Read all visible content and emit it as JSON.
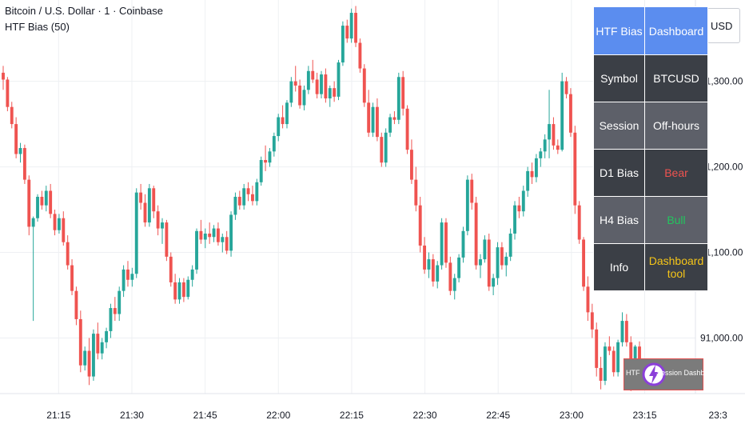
{
  "header": {
    "symbol_title": "Bitcoin / U.S. Dollar · 1 · Coinbase",
    "indicator": "HTF Bias (50)"
  },
  "currency": "USD",
  "colors": {
    "up": "#26a69a",
    "down": "#ef5350",
    "grid": "#eef0f3",
    "bear": "#ef5350",
    "bull": "#22c55e",
    "info": "#f5c518",
    "header_bg": "#5b8def"
  },
  "dashboard": {
    "header": [
      "HTF Bias",
      "Dashboard"
    ],
    "rows": [
      {
        "label": "Symbol",
        "value": "BTCUSD"
      },
      {
        "label": "Session",
        "value": "Off-hours"
      },
      {
        "label": "D1 Bias",
        "value": "Bear"
      },
      {
        "label": "H4 Bias",
        "value": "Bull"
      },
      {
        "label": "Info",
        "value": "Dashboard tool"
      }
    ]
  },
  "session_tag": {
    "left": "HTF",
    "text": "Session Dashboard",
    "icon": "lightning-logo-icon"
  },
  "chart_data": {
    "type": "candlestick",
    "y_ticks": [
      91300,
      91200,
      91100,
      91000
    ],
    "y_tick_labels": [
      "91,300.00",
      "91,200.00",
      "91,100.00",
      "91,000.00"
    ],
    "ylim": [
      90935,
      91395
    ],
    "x_tick_labels": [
      "21:15",
      "21:30",
      "21:45",
      "22:00",
      "22:15",
      "22:30",
      "22:45",
      "23:00",
      "23:15",
      "23:3"
    ],
    "x_range_minutes": [
      "21:03",
      "23:30"
    ],
    "grid": true,
    "candles": [
      [
        91310,
        91318,
        91290,
        91302
      ],
      [
        91302,
        91305,
        91265,
        91270
      ],
      [
        91270,
        91276,
        91245,
        91250
      ],
      [
        91250,
        91258,
        91210,
        91215
      ],
      [
        91215,
        91228,
        91205,
        91222
      ],
      [
        91222,
        91226,
        91180,
        91185
      ],
      [
        91185,
        91190,
        91120,
        91130
      ],
      [
        91130,
        91142,
        91020,
        91140
      ],
      [
        91140,
        91168,
        91136,
        91165
      ],
      [
        91165,
        91172,
        91150,
        91155
      ],
      [
        91155,
        91178,
        91148,
        91172
      ],
      [
        91172,
        91180,
        91140,
        91145
      ],
      [
        91145,
        91150,
        91120,
        91126
      ],
      [
        91126,
        91145,
        91122,
        91140
      ],
      [
        91140,
        91148,
        91108,
        91112
      ],
      [
        91112,
        91120,
        91080,
        91085
      ],
      [
        91085,
        91092,
        91050,
        91055
      ],
      [
        91055,
        91060,
        91015,
        91022
      ],
      [
        91022,
        91032,
        90960,
        90968
      ],
      [
        90968,
        90990,
        90962,
        90985
      ],
      [
        90985,
        91000,
        90945,
        90955
      ],
      [
        90955,
        91010,
        90950,
        91005
      ],
      [
        91005,
        91018,
        90975,
        90982
      ],
      [
        90982,
        91000,
        90975,
        90995
      ],
      [
        90995,
        91012,
        90988,
        91008
      ],
      [
        91008,
        91040,
        91000,
        91035
      ],
      [
        91035,
        91048,
        91020,
        91028
      ],
      [
        91028,
        91060,
        91020,
        91055
      ],
      [
        91055,
        91085,
        91048,
        91080
      ],
      [
        91080,
        91090,
        91060,
        91068
      ],
      [
        91068,
        91082,
        91060,
        91075
      ],
      [
        91075,
        91175,
        91070,
        91170
      ],
      [
        91170,
        91180,
        91150,
        91158
      ],
      [
        91158,
        91168,
        91130,
        91135
      ],
      [
        91135,
        91180,
        91130,
        91175
      ],
      [
        91175,
        91178,
        91140,
        91148
      ],
      [
        91148,
        91155,
        91120,
        91128
      ],
      [
        91128,
        91140,
        91110,
        91135
      ],
      [
        91135,
        91138,
        91090,
        91095
      ],
      [
        91095,
        91100,
        91060,
        91065
      ],
      [
        91065,
        91075,
        91040,
        91045
      ],
      [
        91045,
        91070,
        91040,
        91065
      ],
      [
        91065,
        91070,
        91042,
        91048
      ],
      [
        91048,
        91072,
        91045,
        91068
      ],
      [
        91068,
        91085,
        91060,
        91080
      ],
      [
        91080,
        91128,
        91075,
        91125
      ],
      [
        91125,
        91138,
        91110,
        91115
      ],
      [
        91115,
        91128,
        91105,
        91122
      ],
      [
        91122,
        91135,
        91110,
        91118
      ],
      [
        91118,
        91132,
        91112,
        91128
      ],
      [
        91128,
        91135,
        91108,
        91112
      ],
      [
        91112,
        91122,
        91100,
        91118
      ],
      [
        91118,
        91125,
        91098,
        91102
      ],
      [
        91102,
        91148,
        91095,
        91144
      ],
      [
        91144,
        91170,
        91138,
        91165
      ],
      [
        91165,
        91172,
        91150,
        91155
      ],
      [
        91155,
        91180,
        91150,
        91175
      ],
      [
        91175,
        91182,
        91160,
        91168
      ],
      [
        91168,
        91178,
        91155,
        91160
      ],
      [
        91160,
        91186,
        91155,
        91182
      ],
      [
        91182,
        91212,
        91178,
        91208
      ],
      [
        91208,
        91225,
        91195,
        91205
      ],
      [
        91205,
        91222,
        91200,
        91218
      ],
      [
        91218,
        91240,
        91212,
        91236
      ],
      [
        91236,
        91262,
        91230,
        91258
      ],
      [
        91258,
        91272,
        91245,
        91250
      ],
      [
        91250,
        91278,
        91245,
        91275
      ],
      [
        91275,
        91305,
        91270,
        91300
      ],
      [
        91300,
        91318,
        91288,
        91295
      ],
      [
        91295,
        91302,
        91268,
        91272
      ],
      [
        91272,
        91295,
        91266,
        91290
      ],
      [
        91290,
        91318,
        91285,
        91312
      ],
      [
        91312,
        91325,
        91298,
        91302
      ],
      [
        91302,
        91310,
        91280,
        91285
      ],
      [
        91285,
        91312,
        91280,
        91308
      ],
      [
        91308,
        91315,
        91275,
        91280
      ],
      [
        91280,
        91295,
        91270,
        91292
      ],
      [
        91292,
        91300,
        91276,
        91282
      ],
      [
        91282,
        91325,
        91278,
        91322
      ],
      [
        91322,
        91370,
        91318,
        91365
      ],
      [
        91365,
        91372,
        91345,
        91350
      ],
      [
        91350,
        91385,
        91345,
        91380
      ],
      [
        91380,
        91388,
        91340,
        91345
      ],
      [
        91345,
        91350,
        91310,
        91315
      ],
      [
        91315,
        91320,
        91270,
        91275
      ],
      [
        91275,
        91290,
        91235,
        91240
      ],
      [
        91240,
        91275,
        91235,
        91270
      ],
      [
        91270,
        91280,
        91230,
        91235
      ],
      [
        91235,
        91240,
        91200,
        91205
      ],
      [
        91205,
        91245,
        91200,
        91240
      ],
      [
        91240,
        91262,
        91235,
        91258
      ],
      [
        91258,
        91265,
        91250,
        91255
      ],
      [
        91255,
        91310,
        91250,
        91305
      ],
      [
        91305,
        91312,
        91260,
        91268
      ],
      [
        91268,
        91272,
        91215,
        91220
      ],
      [
        91220,
        91232,
        91180,
        91185
      ],
      [
        91185,
        91200,
        91148,
        91155
      ],
      [
        91155,
        91165,
        91100,
        91108
      ],
      [
        91108,
        91118,
        91075,
        91080
      ],
      [
        91080,
        91100,
        91070,
        91092
      ],
      [
        91092,
        91098,
        91060,
        91066
      ],
      [
        91066,
        91090,
        91058,
        91085
      ],
      [
        91085,
        91140,
        91080,
        91135
      ],
      [
        91135,
        91140,
        91082,
        91088
      ],
      [
        91088,
        91095,
        91050,
        91055
      ],
      [
        91055,
        91075,
        91045,
        91070
      ],
      [
        91070,
        91098,
        91065,
        91094
      ],
      [
        91094,
        91130,
        91088,
        91125
      ],
      [
        91125,
        91190,
        91120,
        91185
      ],
      [
        91185,
        91192,
        91150,
        91158
      ],
      [
        91158,
        91165,
        91080,
        91085
      ],
      [
        91085,
        91098,
        91070,
        91092
      ],
      [
        91092,
        91120,
        91088,
        91115
      ],
      [
        91115,
        91122,
        91055,
        91060
      ],
      [
        91060,
        91075,
        91050,
        91070
      ],
      [
        91070,
        91112,
        91062,
        91106
      ],
      [
        91106,
        91112,
        91080,
        91085
      ],
      [
        91085,
        91100,
        91072,
        91095
      ],
      [
        91095,
        91128,
        91090,
        91122
      ],
      [
        91122,
        91160,
        91115,
        91155
      ],
      [
        91155,
        91165,
        91140,
        91148
      ],
      [
        91148,
        91178,
        91142,
        91172
      ],
      [
        91172,
        91200,
        91165,
        91195
      ],
      [
        91195,
        91205,
        91180,
        91188
      ],
      [
        91188,
        91215,
        91182,
        91210
      ],
      [
        91210,
        91222,
        91200,
        91218
      ],
      [
        91218,
        91238,
        91210,
        91232
      ],
      [
        91232,
        91290,
        91210,
        91250
      ],
      [
        91250,
        91258,
        91220,
        91225
      ],
      [
        91225,
        91232,
        91215,
        91220
      ],
      [
        91220,
        91310,
        91218,
        91300
      ],
      [
        91300,
        91305,
        91280,
        91285
      ],
      [
        91285,
        91292,
        91235,
        91240
      ],
      [
        91240,
        91248,
        91145,
        91155
      ],
      [
        91155,
        91160,
        91110,
        91115
      ],
      [
        91115,
        91118,
        91055,
        91060
      ],
      [
        91060,
        91072,
        91020,
        91030
      ],
      [
        91030,
        91040,
        91000,
        91010
      ],
      [
        91010,
        91018,
        90955,
        90965
      ],
      [
        90965,
        90978,
        90940,
        90950
      ],
      [
        90950,
        90995,
        90945,
        90990
      ],
      [
        90990,
        91002,
        90980,
        90985
      ],
      [
        90985,
        90990,
        90955,
        90960
      ],
      [
        90960,
        90998,
        90955,
        90995
      ],
      [
        90995,
        91030,
        90990,
        91020
      ],
      [
        91020,
        91028,
        90990,
        90995
      ],
      [
        90995,
        91002,
        90938,
        90945
      ],
      [
        90945,
        90992,
        90942,
        90990
      ],
      [
        90990,
        90996,
        90950,
        90958
      ]
    ]
  }
}
